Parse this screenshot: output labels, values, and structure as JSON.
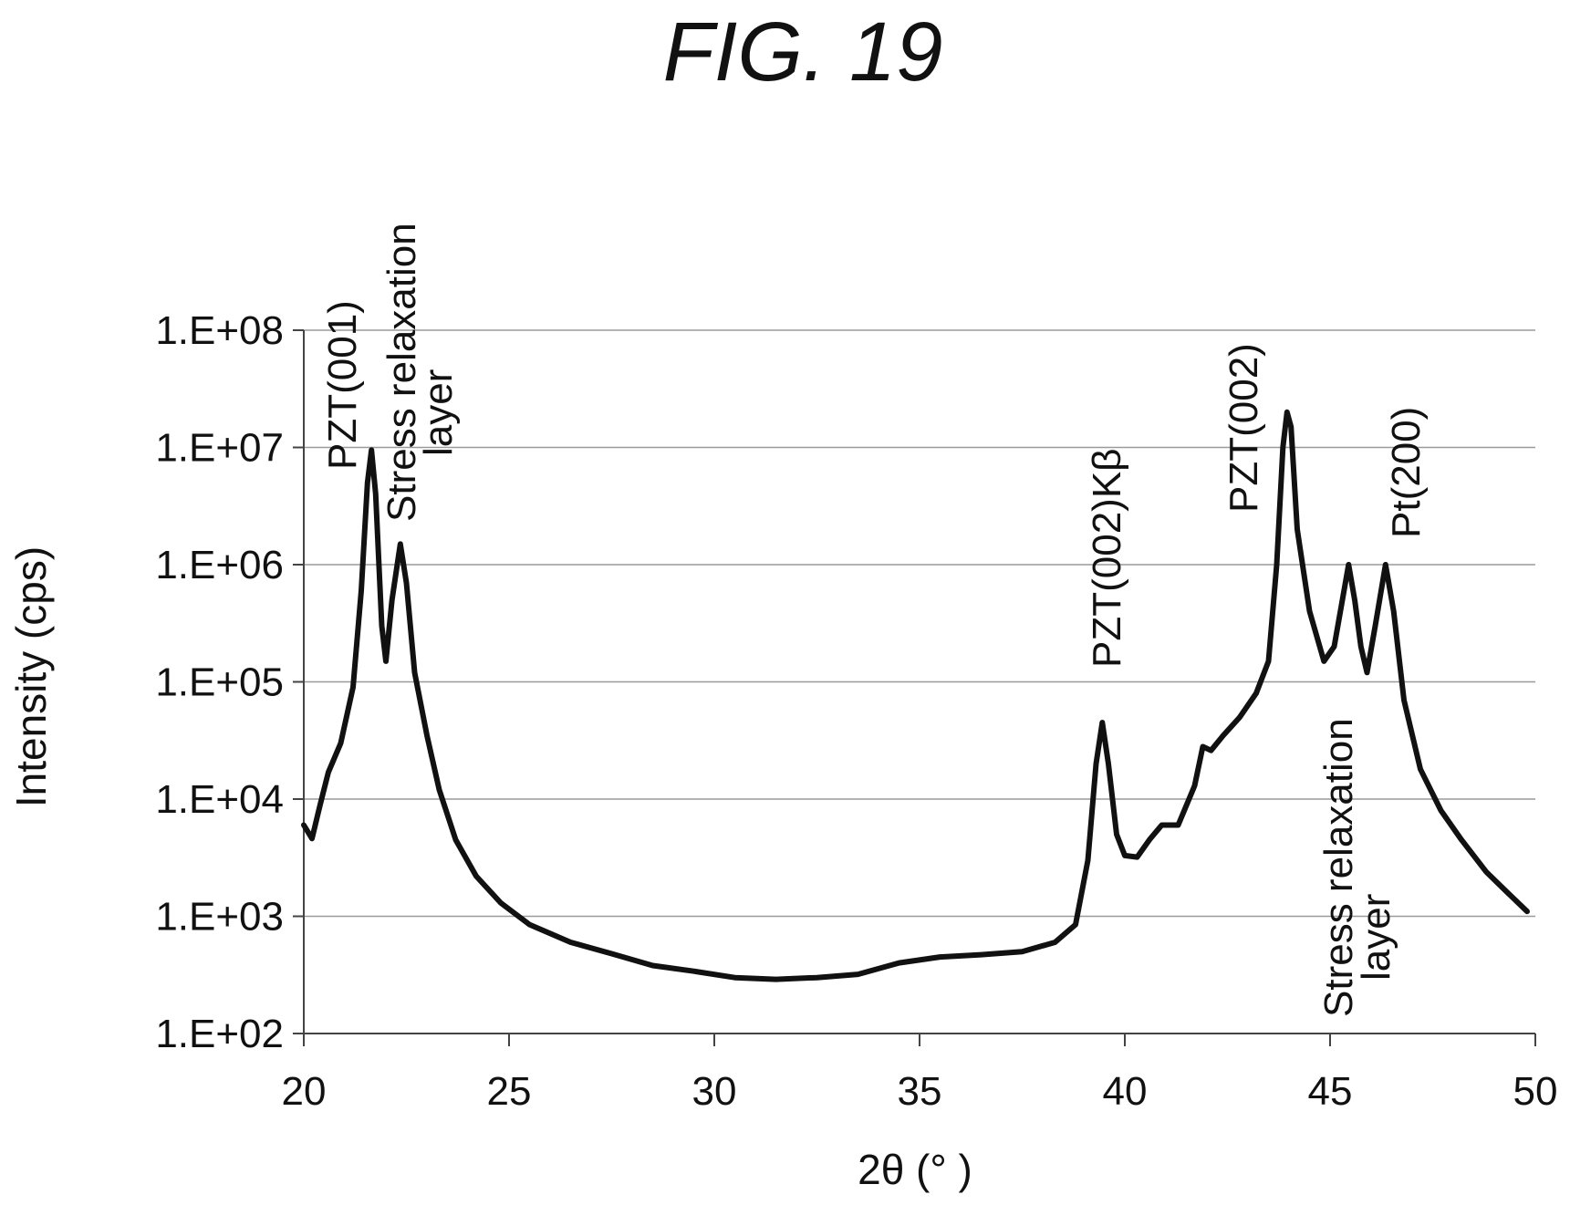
{
  "figure_title": "FIG. 19",
  "chart_data": {
    "type": "line",
    "xlabel": "2θ (°  )",
    "ylabel": "Intensity (cps)",
    "xlim": [
      20,
      50
    ],
    "ylim": [
      100,
      100000000
    ],
    "yscale": "log",
    "grid": "horizontal",
    "legend": "none",
    "x_ticks": [
      "20",
      "25",
      "30",
      "35",
      "40",
      "45",
      "50"
    ],
    "y_ticks": [
      "1.E+02",
      "1.E+03",
      "1.E+04",
      "1.E+05",
      "1.E+06",
      "1.E+07",
      "1.E+08"
    ],
    "series": [
      {
        "color": "#111111",
        "points": [
          [
            20.0,
            6000
          ],
          [
            20.2,
            4600
          ],
          [
            20.4,
            9000
          ],
          [
            20.6,
            17000
          ],
          [
            20.9,
            30000
          ],
          [
            21.2,
            90000
          ],
          [
            21.4,
            600000
          ],
          [
            21.55,
            5000000
          ],
          [
            21.65,
            9500000
          ],
          [
            21.75,
            4000000
          ],
          [
            21.9,
            300000
          ],
          [
            22.0,
            150000
          ],
          [
            22.15,
            500000
          ],
          [
            22.35,
            1500000
          ],
          [
            22.5,
            700000
          ],
          [
            22.7,
            120000
          ],
          [
            23.0,
            35000
          ],
          [
            23.3,
            12000
          ],
          [
            23.7,
            4500
          ],
          [
            24.2,
            2200
          ],
          [
            24.8,
            1300
          ],
          [
            25.5,
            850
          ],
          [
            26.5,
            600
          ],
          [
            27.5,
            480
          ],
          [
            28.5,
            380
          ],
          [
            29.5,
            340
          ],
          [
            30.5,
            300
          ],
          [
            31.5,
            290
          ],
          [
            32.5,
            300
          ],
          [
            33.5,
            320
          ],
          [
            34.5,
            400
          ],
          [
            35.5,
            450
          ],
          [
            36.5,
            470
          ],
          [
            37.5,
            500
          ],
          [
            38.3,
            600
          ],
          [
            38.8,
            850
          ],
          [
            39.1,
            3000
          ],
          [
            39.3,
            20000
          ],
          [
            39.45,
            45000
          ],
          [
            39.6,
            20000
          ],
          [
            39.8,
            5000
          ],
          [
            40.0,
            3300
          ],
          [
            40.3,
            3200
          ],
          [
            40.6,
            4500
          ],
          [
            40.9,
            6000
          ],
          [
            41.3,
            6000
          ],
          [
            41.7,
            13000
          ],
          [
            41.9,
            28000
          ],
          [
            42.1,
            26000
          ],
          [
            42.4,
            35000
          ],
          [
            42.8,
            50000
          ],
          [
            43.2,
            80000
          ],
          [
            43.5,
            150000
          ],
          [
            43.7,
            1000000
          ],
          [
            43.85,
            10000000
          ],
          [
            43.95,
            20000000
          ],
          [
            44.05,
            15000000
          ],
          [
            44.2,
            2000000
          ],
          [
            44.5,
            400000
          ],
          [
            44.85,
            150000
          ],
          [
            45.1,
            200000
          ],
          [
            45.3,
            500000
          ],
          [
            45.45,
            1000000
          ],
          [
            45.6,
            500000
          ],
          [
            45.75,
            200000
          ],
          [
            45.9,
            120000
          ],
          [
            46.1,
            300000
          ],
          [
            46.35,
            1000000
          ],
          [
            46.55,
            400000
          ],
          [
            46.8,
            70000
          ],
          [
            47.2,
            18000
          ],
          [
            47.7,
            8000
          ],
          [
            48.2,
            4500
          ],
          [
            48.8,
            2400
          ],
          [
            49.4,
            1500
          ],
          [
            49.8,
            1100
          ]
        ]
      }
    ],
    "annotations": [
      {
        "text": "PZT(001)",
        "x": 21.65
      },
      {
        "text": "Stress relaxation",
        "x": 22.35
      },
      {
        "text": "layer",
        "x": 22.35
      },
      {
        "text": "PZT(002)Kβ",
        "x": 39.45
      },
      {
        "text": "PZT(002)",
        "x": 43.95
      },
      {
        "text": "Pt(200)",
        "x": 46.35
      },
      {
        "text": "Stress relaxation",
        "x": 45.45
      },
      {
        "text": "layer",
        "x": 45.45
      }
    ]
  }
}
